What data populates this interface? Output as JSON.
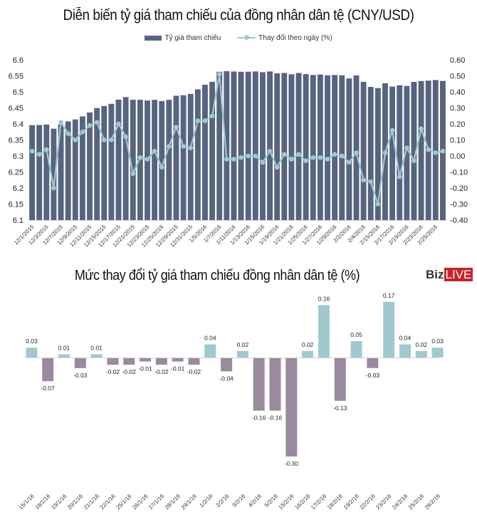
{
  "chart_data": [
    {
      "type": "bar+line",
      "title": "Diễn biến tỷ giá tham chiếu của đồng nhân dân tệ (CNY/USD)",
      "legend": [
        "Tỷ giá tham chiếu",
        "Thay đổi theo ngày (%)"
      ],
      "legend_position": "top-center",
      "xlabel": "",
      "ylabel_left": "",
      "ylabel_right": "",
      "ylim_left": [
        6.1,
        6.6
      ],
      "ylim_right": [
        -0.4,
        0.6
      ],
      "yticks_left": [
        "6.6",
        "6.55",
        "6.5",
        "6.45",
        "6.4",
        "6.35",
        "6.3",
        "6.25",
        "6.2",
        "6.15",
        "6.1"
      ],
      "yticks_right": [
        "0.60",
        "0.50",
        "0.40",
        "0.30",
        "0.20",
        "0.10",
        "0.00",
        "-0.10",
        "-0.20",
        "-0.30",
        "-0.40"
      ],
      "x_tick_labels": [
        "12/1/2015",
        "12/3/2015",
        "12/7/2015",
        "12/9/2015",
        "12/11/2015",
        "12/15/2015",
        "12/17/2015",
        "12/21/2015",
        "12/23/2015",
        "12/25/2015",
        "12/29/2015",
        "12/31/2015",
        "1/5/2016",
        "1/7/2016",
        "1/11/2016",
        "1/13/2016",
        "1/15/2016",
        "1/19/2016",
        "1/21/2016",
        "1/25/2016",
        "1/27/2016",
        "1/29/2016",
        "2/2/2016",
        "2/4/2016",
        "2/15/2016",
        "2/17/2016",
        "2/19/2016",
        "2/23/2016",
        "2/25/2016"
      ],
      "series": [
        {
          "name": "Tỷ giá tham chiếu",
          "type": "bar",
          "color": "#56647f",
          "values": [
            6.3962,
            6.3966,
            6.398,
            6.3851,
            6.3985,
            6.4078,
            6.414,
            6.4236,
            6.4358,
            6.4495,
            6.4559,
            6.4626,
            6.4757,
            6.4837,
            6.4753,
            6.4753,
            6.4731,
            6.4753,
            6.4713,
            6.4752,
            6.4879,
            6.4896,
            6.4936,
            6.5079,
            6.5223,
            6.5314,
            6.5628,
            6.5646,
            6.5636,
            6.5626,
            6.563,
            6.5637,
            6.5614,
            6.5637,
            6.558,
            6.5592,
            6.5548,
            6.559,
            6.5553,
            6.5527,
            6.5539,
            6.5517,
            6.5527,
            6.5516,
            6.5419,
            6.5514,
            6.5313,
            6.5155,
            6.5118,
            6.5269,
            6.5165,
            6.5206,
            6.5185,
            6.5311,
            6.5338,
            6.535,
            6.5369,
            6.5342
          ]
        },
        {
          "name": "Thay đổi theo ngày (%)",
          "type": "line",
          "color": "#9fc9cf",
          "values": [
            0.03,
            0.01,
            0.04,
            -0.2,
            0.21,
            0.14,
            0.1,
            0.15,
            0.19,
            0.21,
            0.1,
            0.1,
            0.2,
            0.12,
            -0.11,
            -0.01,
            -0.02,
            0.03,
            -0.07,
            0.06,
            0.18,
            0.06,
            0.05,
            0.22,
            0.22,
            0.25,
            0.51,
            -0.02,
            -0.02,
            -0.01,
            0.0,
            0.0,
            -0.04,
            0.03,
            -0.07,
            0.01,
            -0.02,
            0.01,
            -0.03,
            -0.01,
            -0.01,
            -0.02,
            0.01,
            0.0,
            -0.04,
            0.02,
            -0.15,
            -0.16,
            -0.3,
            0.02,
            0.16,
            -0.13,
            0.05,
            -0.03,
            0.17,
            0.04,
            0.02,
            0.03
          ]
        }
      ]
    },
    {
      "type": "bar",
      "title": "Mức thay đổi tỷ giá tham chiếu đồng nhân dân tệ (%)",
      "xlabel": "",
      "ylabel": "",
      "ylim": [
        -0.32,
        0.17
      ],
      "grid": false,
      "categories": [
        "15/1/16",
        "18/1/16",
        "19/1/16",
        "20/1/16",
        "21/1/16",
        "22/1/16",
        "25/1/16",
        "26/1/16",
        "27/1/16",
        "28/1/16",
        "29/1/16",
        "1/2/16",
        "2/2/16",
        "3/2/16",
        "4/2/16",
        "5/2/16",
        "15/2/16",
        "16/2/16",
        "17/2/16",
        "18/2/16",
        "19/2/16",
        "22/2/16",
        "23/2/16",
        "24/2/16",
        "25/2/16",
        "26/2/16"
      ],
      "values": [
        0.03,
        -0.07,
        0.01,
        -0.03,
        0.01,
        -0.02,
        -0.02,
        -0.01,
        -0.02,
        -0.01,
        -0.02,
        0.04,
        -0.04,
        0.02,
        -0.16,
        -0.16,
        -0.3,
        0.02,
        0.16,
        -0.13,
        0.05,
        -0.03,
        0.17,
        0.04,
        0.02,
        0.03
      ],
      "data_labels": [
        "0.03",
        "-0.07",
        "0.01",
        "-0.03",
        "0.01",
        "-0.02",
        "-0.02",
        "-0.01",
        "-0.02",
        "-0.01",
        "-0.02",
        "0.04",
        "-0.04",
        "0.02",
        "-0.16",
        "-0.16",
        "-0.30",
        "0.02",
        "0.16",
        "-0.13",
        "0.05",
        "-0.03",
        "0.17",
        "0.04",
        "0.02",
        "0.03"
      ],
      "positive_color": "#9fc9cf",
      "negative_color": "#998a9e"
    }
  ],
  "logo": {
    "part1": "Biz",
    "part2": "LIVE"
  }
}
